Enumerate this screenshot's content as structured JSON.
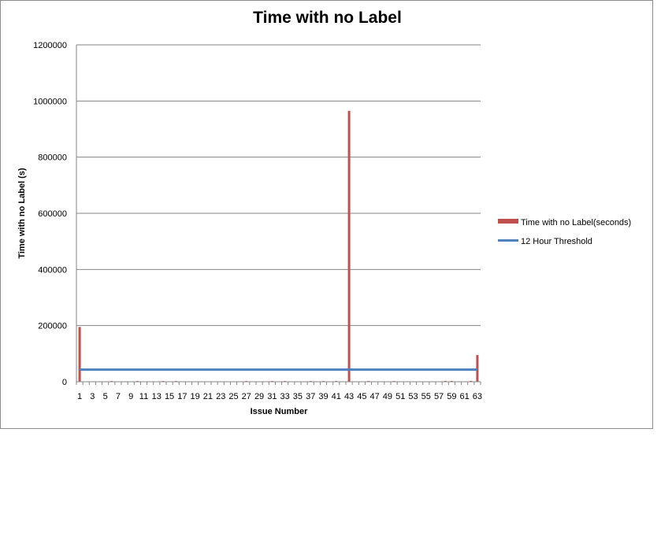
{
  "chart_data": {
    "type": "bar",
    "title": "Time with no Label",
    "xlabel": "Issue Number",
    "ylabel": "Time with no Label (s)",
    "ylim": [
      0,
      1200000
    ],
    "yticks": [
      0,
      200000,
      400000,
      600000,
      800000,
      1000000,
      1200000
    ],
    "grid": true,
    "legend_position": "right",
    "categories": [
      1,
      2,
      3,
      4,
      5,
      6,
      7,
      8,
      9,
      10,
      11,
      12,
      13,
      14,
      15,
      16,
      17,
      18,
      19,
      20,
      21,
      22,
      23,
      24,
      25,
      26,
      27,
      28,
      29,
      30,
      31,
      32,
      33,
      34,
      35,
      36,
      37,
      38,
      39,
      40,
      41,
      42,
      43,
      44,
      45,
      46,
      47,
      48,
      49,
      50,
      51,
      52,
      53,
      54,
      55,
      56,
      57,
      58,
      59,
      60,
      61,
      62,
      63
    ],
    "x_tick_labels": [
      "1",
      "3",
      "5",
      "7",
      "9",
      "11",
      "13",
      "15",
      "17",
      "19",
      "21",
      "23",
      "25",
      "27",
      "29",
      "31",
      "33",
      "35",
      "37",
      "39",
      "41",
      "43",
      "45",
      "47",
      "49",
      "51",
      "53",
      "55",
      "57",
      "59",
      "61",
      "63"
    ],
    "series": [
      {
        "name": "Time with no Label(seconds)",
        "type": "bar",
        "color": "#c0504d",
        "values": [
          195000,
          0,
          1500,
          0,
          0,
          2500,
          0,
          0,
          0,
          2500,
          0,
          0,
          0,
          2500,
          0,
          2500,
          0,
          0,
          0,
          0,
          0,
          0,
          0,
          0,
          0,
          0,
          2500,
          0,
          0,
          0,
          2500,
          0,
          2500,
          0,
          0,
          0,
          2500,
          0,
          2500,
          0,
          2500,
          0,
          965000,
          0,
          0,
          2500,
          0,
          0,
          0,
          2500,
          0,
          0,
          0,
          0,
          0,
          0,
          0,
          3000,
          3000,
          0,
          0,
          3000,
          95000
        ]
      },
      {
        "name": "12 Hour Threshold",
        "type": "line",
        "color": "#4f81bd",
        "value": 43200
      }
    ]
  }
}
